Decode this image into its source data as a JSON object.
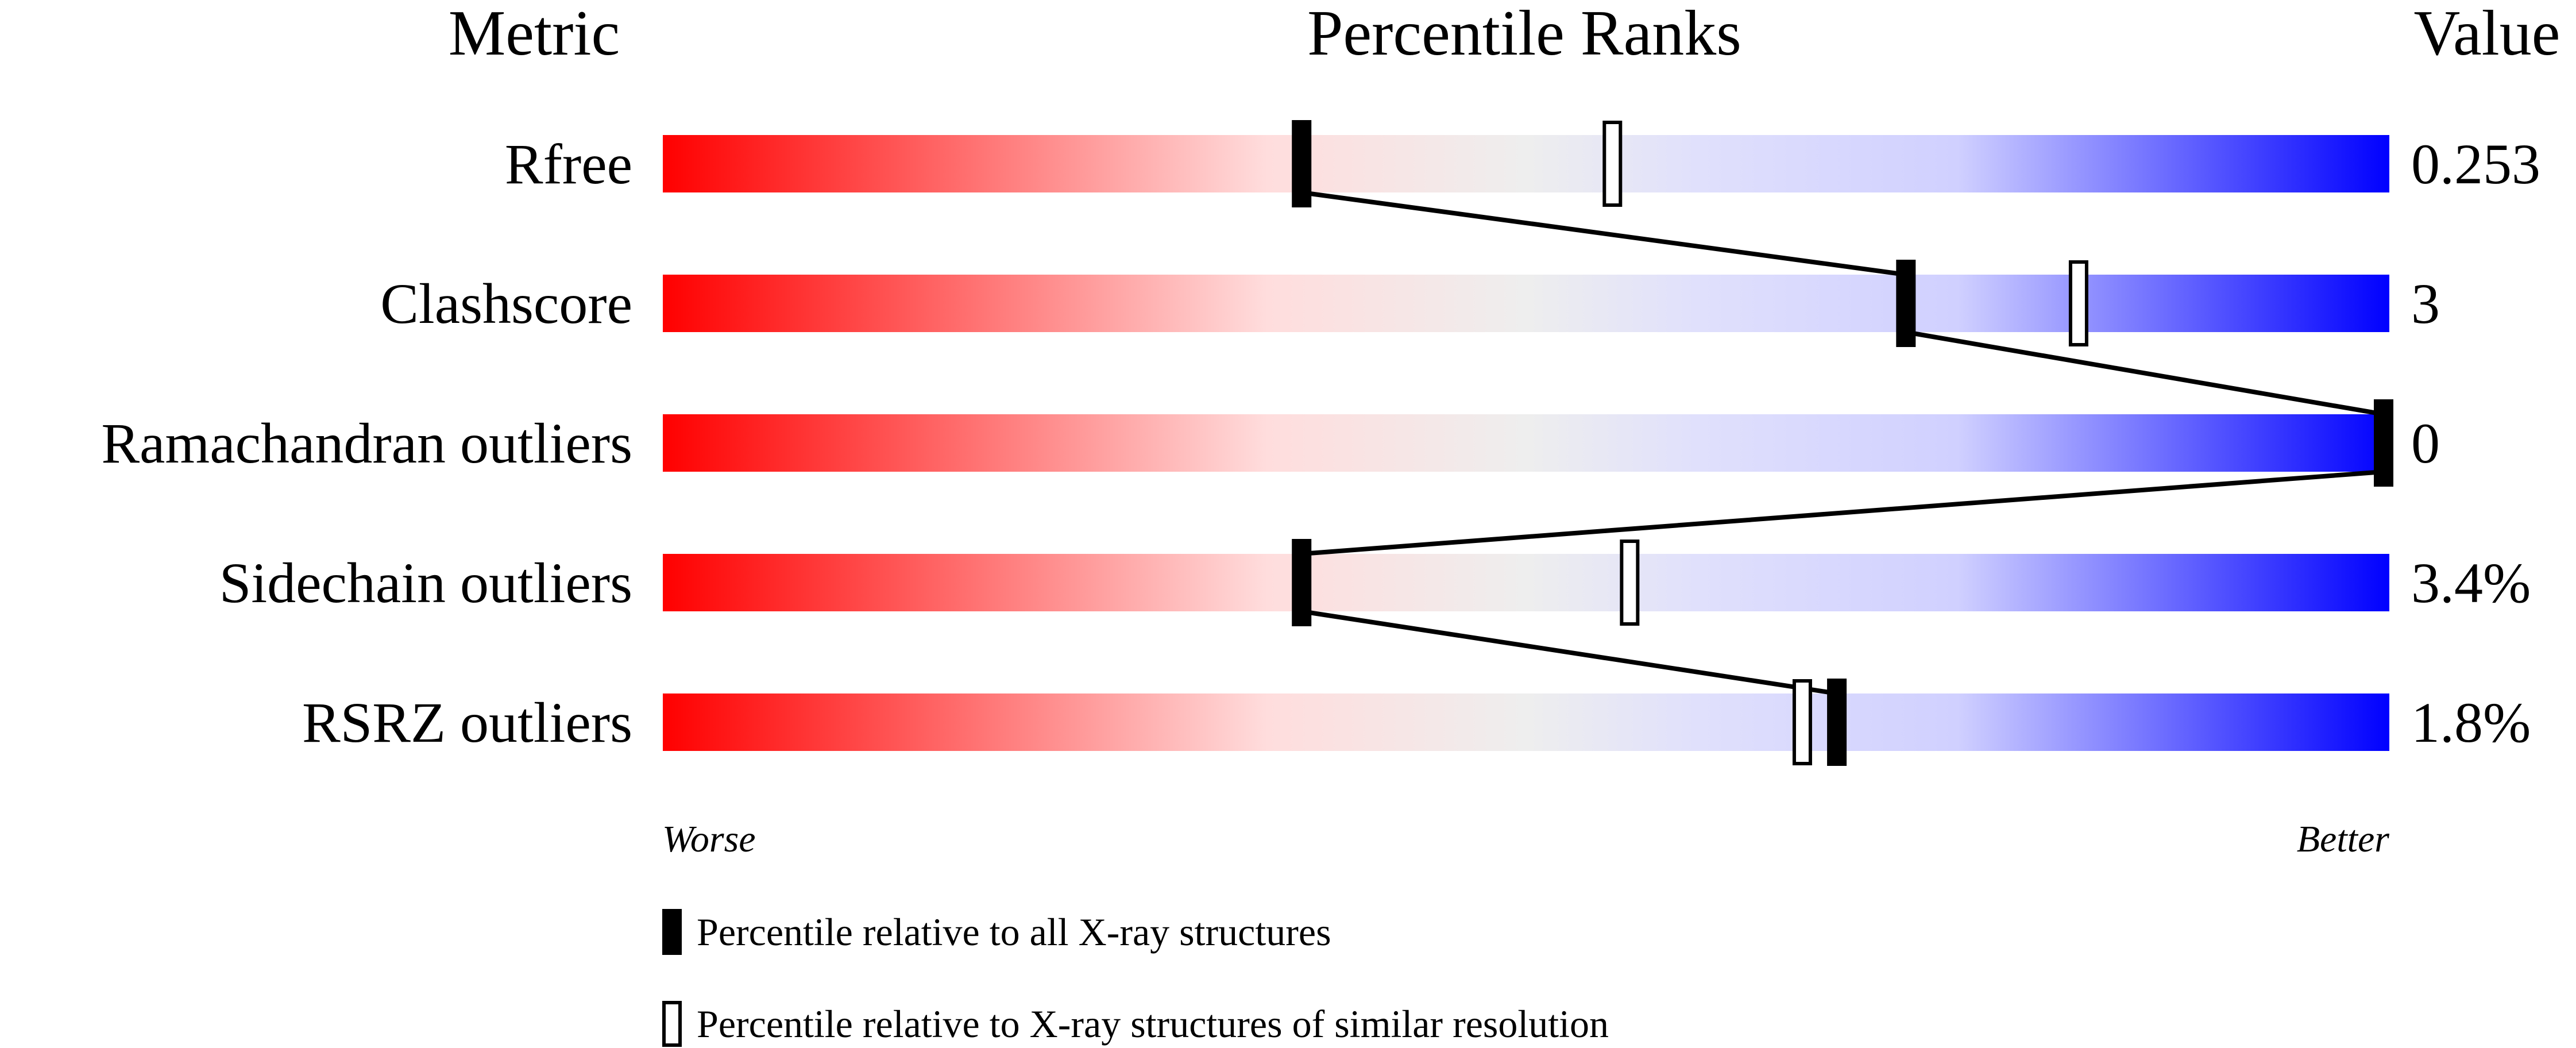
{
  "chart_data": {
    "type": "percentile-slider",
    "headers": {
      "metric": "Metric",
      "ranks": "Percentile Ranks",
      "value": "Value"
    },
    "axis": {
      "min": 0,
      "max": 100,
      "left_label": "Worse",
      "right_label": "Better"
    },
    "gradient_colors": [
      "#ff0000",
      "#ffdddd",
      "#eeeeee",
      "#ddddff",
      "#0000ff"
    ],
    "metrics": [
      {
        "name": "Rfree",
        "value": "0.253",
        "percentile_all": 37,
        "percentile_similar": 55
      },
      {
        "name": "Clashscore",
        "value": "3",
        "percentile_all": 72,
        "percentile_similar": 82
      },
      {
        "name": "Ramachandran outliers",
        "value": "0",
        "percentile_all": 100,
        "percentile_similar": 100
      },
      {
        "name": "Sidechain outliers",
        "value": "3.4%",
        "percentile_all": 37,
        "percentile_similar": 56
      },
      {
        "name": "RSRZ outliers",
        "value": "1.8%",
        "percentile_all": 68,
        "percentile_similar": 66
      }
    ],
    "legend": [
      {
        "marker": "filled",
        "label": "Percentile relative to all X-ray structures"
      },
      {
        "marker": "open",
        "label": "Percentile relative to X-ray structures of similar resolution"
      }
    ]
  }
}
